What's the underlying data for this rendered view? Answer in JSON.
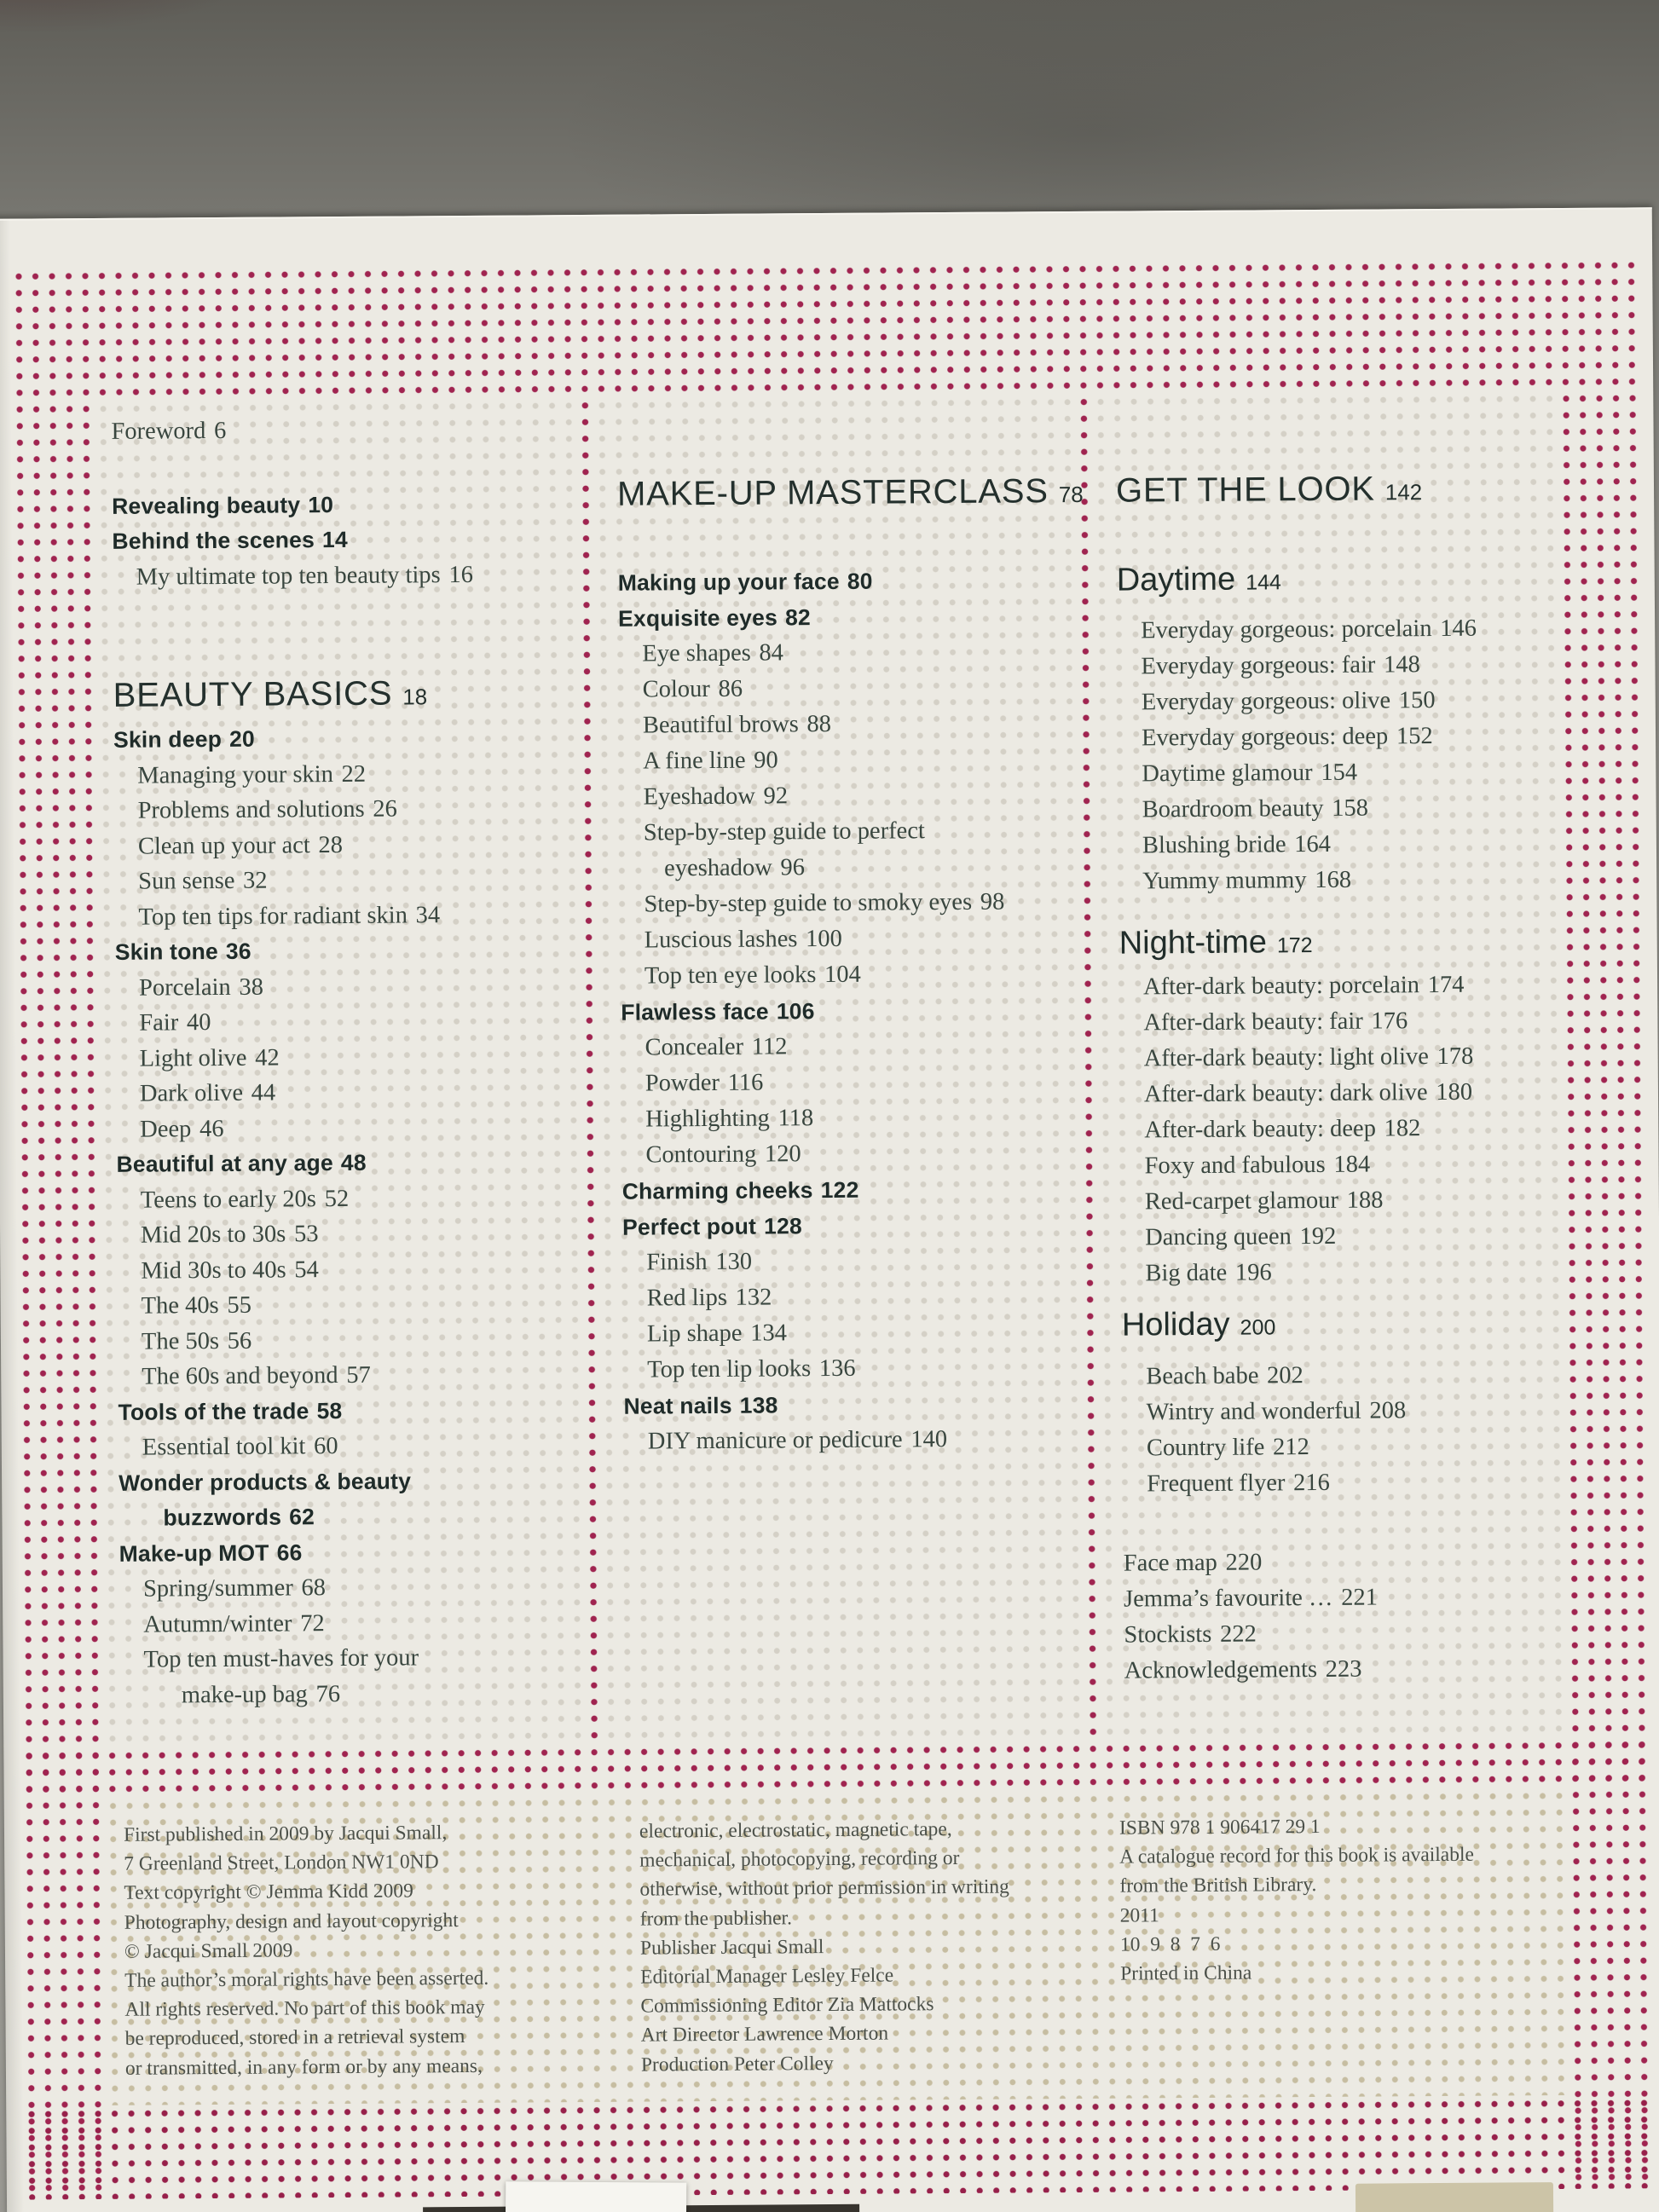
{
  "photo": {
    "subject": "Table of contents page of a make-up book lying on a grey stone table",
    "paper_color": "#eceae3",
    "table_color": "#8f8e88",
    "dot_pink": "#a02450",
    "dot_faint_grey": "#d4d0c6",
    "dot_tan": "#c6bda1",
    "heading_text_color": "#24302d",
    "serif_text_color": "#39463f"
  },
  "toc": {
    "columns": [
      {
        "name": "column-1",
        "items": [
          {
            "t": "Foreword",
            "p": "6",
            "s": "serif",
            "i": 0
          },
          {
            "gap": 46
          },
          {
            "t": "Revealing beauty",
            "p": "10",
            "s": "bold",
            "i": 0
          },
          {
            "t": "Behind the scenes",
            "p": "14",
            "s": "bold",
            "i": 0
          },
          {
            "t": "My ultimate top ten beauty tips",
            "p": "16",
            "s": "serif",
            "i": 1
          },
          {
            "gap": 90
          },
          {
            "t": "BEAUTY BASICS",
            "p": "18",
            "s": "bighead",
            "i": 0
          },
          {
            "t": "Skin deep",
            "p": "20",
            "s": "bold",
            "i": 0
          },
          {
            "t": "Managing your skin",
            "p": "22",
            "s": "serif",
            "i": 1
          },
          {
            "t": "Problems and solutions",
            "p": "26",
            "s": "serif",
            "i": 1
          },
          {
            "t": "Clean up your act",
            "p": "28",
            "s": "serif",
            "i": 1
          },
          {
            "t": "Sun sense",
            "p": "32",
            "s": "serif",
            "i": 1
          },
          {
            "t": "Top ten tips for radiant skin",
            "p": "34",
            "s": "serif",
            "i": 1
          },
          {
            "t": "Skin tone",
            "p": "36",
            "s": "bold",
            "i": 0
          },
          {
            "t": "Porcelain",
            "p": "38",
            "s": "serif",
            "i": 1
          },
          {
            "t": "Fair",
            "p": "40",
            "s": "serif",
            "i": 1
          },
          {
            "t": "Light olive",
            "p": "42",
            "s": "serif",
            "i": 1
          },
          {
            "t": "Dark olive",
            "p": "44",
            "s": "serif",
            "i": 1
          },
          {
            "t": "Deep",
            "p": "46",
            "s": "serif",
            "i": 1
          },
          {
            "t": "Beautiful at any age",
            "p": "48",
            "s": "bold",
            "i": 0
          },
          {
            "t": "Teens to early 20s",
            "p": "52",
            "s": "serif",
            "i": 1
          },
          {
            "t": "Mid 20s to 30s",
            "p": "53",
            "s": "serif",
            "i": 1
          },
          {
            "t": "Mid 30s to 40s",
            "p": "54",
            "s": "serif",
            "i": 1
          },
          {
            "t": "The 40s",
            "p": "55",
            "s": "serif",
            "i": 1
          },
          {
            "t": "The 50s",
            "p": "56",
            "s": "serif",
            "i": 1
          },
          {
            "t": "The 60s and beyond",
            "p": "57",
            "s": "serif",
            "i": 1
          },
          {
            "t": "Tools of the trade",
            "p": "58",
            "s": "bold",
            "i": 0
          },
          {
            "t": "Essential tool kit",
            "p": "60",
            "s": "serif",
            "i": 1
          },
          {
            "t": "Wonder products & beauty",
            "p": "",
            "s": "bold",
            "i": 0
          },
          {
            "t": "buzzwords",
            "p": "62",
            "s": "bold",
            "i": 2
          },
          {
            "t": "Make-up MOT",
            "p": "66",
            "s": "bold",
            "i": 0
          },
          {
            "t": "Spring/summer",
            "p": "68",
            "s": "serif",
            "i": 1
          },
          {
            "t": "Autumn/winter",
            "p": "72",
            "s": "serif",
            "i": 1
          },
          {
            "t": "Top ten must-haves for your",
            "p": "",
            "s": "serif",
            "i": 1
          },
          {
            "t": "make-up bag",
            "p": "76",
            "s": "serif",
            "i": 3
          }
        ]
      },
      {
        "name": "column-2",
        "items": [
          {
            "gap": 70
          },
          {
            "t": "MAKE-UP MASTERCLASS",
            "p": "78",
            "s": "bighead",
            "i": 0
          },
          {
            "gap": 51
          },
          {
            "t": "Making up your face",
            "p": "80",
            "s": "bold",
            "i": 0
          },
          {
            "t": "Exquisite eyes",
            "p": "82",
            "s": "bold",
            "i": 0
          },
          {
            "t": "Eye shapes",
            "p": "84",
            "s": "serif",
            "i": 1
          },
          {
            "t": "Colour",
            "p": "86",
            "s": "serif",
            "i": 1
          },
          {
            "t": "Beautiful brows",
            "p": "88",
            "s": "serif",
            "i": 1
          },
          {
            "t": "A fine line",
            "p": "90",
            "s": "serif",
            "i": 1
          },
          {
            "t": "Eyeshadow",
            "p": "92",
            "s": "serif",
            "i": 1
          },
          {
            "t": "Step-by-step guide to perfect",
            "p": "",
            "s": "serif",
            "i": 1
          },
          {
            "t": "eyeshadow",
            "p": "96",
            "s": "serif",
            "i": 2
          },
          {
            "t": "Step-by-step guide to smoky eyes",
            "p": "98",
            "s": "serif",
            "i": 1
          },
          {
            "t": "Luscious lashes",
            "p": "100",
            "s": "serif",
            "i": 1
          },
          {
            "t": "Top ten eye looks",
            "p": "104",
            "s": "serif",
            "i": 1
          },
          {
            "t": "Flawless face",
            "p": "106",
            "s": "bold",
            "i": 0
          },
          {
            "t": "Concealer",
            "p": "112",
            "s": "serif",
            "i": 1
          },
          {
            "t": "Powder",
            "p": "116",
            "s": "serif",
            "i": 1
          },
          {
            "t": "Highlighting",
            "p": "118",
            "s": "serif",
            "i": 1
          },
          {
            "t": "Contouring",
            "p": "120",
            "s": "serif",
            "i": 1
          },
          {
            "t": "Charming cheeks",
            "p": "122",
            "s": "bold",
            "i": 0
          },
          {
            "t": "Perfect pout",
            "p": "128",
            "s": "bold",
            "i": 0
          },
          {
            "t": "Finish",
            "p": "130",
            "s": "serif",
            "i": 1
          },
          {
            "t": "Red lips",
            "p": "132",
            "s": "serif",
            "i": 1
          },
          {
            "t": "Lip shape",
            "p": "134",
            "s": "serif",
            "i": 1
          },
          {
            "t": "Top ten lip looks",
            "p": "136",
            "s": "serif",
            "i": 1
          },
          {
            "t": "Neat nails",
            "p": "138",
            "s": "bold",
            "i": 0
          },
          {
            "t": "DIY manicure or pedicure",
            "p": "140",
            "s": "serif",
            "i": 1
          }
        ]
      },
      {
        "name": "column-3",
        "items": [
          {
            "gap": 70
          },
          {
            "t": "GET THE LOOK",
            "p": "142",
            "s": "bighead",
            "i": 0
          },
          {
            "gap": 46
          },
          {
            "t": "Daytime",
            "p": "144",
            "s": "subhead",
            "i": 0
          },
          {
            "gap": 8
          },
          {
            "t": "Everyday gorgeous: porcelain",
            "p": "146",
            "s": "serif",
            "i": 1
          },
          {
            "t": "Everyday gorgeous: fair",
            "p": "148",
            "s": "serif",
            "i": 1
          },
          {
            "t": "Everyday gorgeous: olive",
            "p": "150",
            "s": "serif",
            "i": 1
          },
          {
            "t": "Everyday gorgeous: deep",
            "p": "152",
            "s": "serif",
            "i": 1
          },
          {
            "t": "Daytime glamour",
            "p": "154",
            "s": "serif",
            "i": 1
          },
          {
            "t": "Boardroom beauty",
            "p": "158",
            "s": "serif",
            "i": 1
          },
          {
            "t": "Blushing bride",
            "p": "164",
            "s": "serif",
            "i": 1
          },
          {
            "t": "Yummy mummy",
            "p": "168",
            "s": "serif",
            "i": 1
          },
          {
            "gap": 24
          },
          {
            "t": "Night-time",
            "p": "172",
            "s": "subhead",
            "i": 0
          },
          {
            "t": "After-dark beauty: porcelain",
            "p": "174",
            "s": "serif",
            "i": 1
          },
          {
            "t": "After-dark beauty: fair",
            "p": "176",
            "s": "serif",
            "i": 1
          },
          {
            "t": "After-dark beauty: light olive",
            "p": "178",
            "s": "serif",
            "i": 1
          },
          {
            "t": "After-dark beauty: dark olive",
            "p": "180",
            "s": "serif",
            "i": 1
          },
          {
            "t": "After-dark beauty: deep",
            "p": "182",
            "s": "serif",
            "i": 1
          },
          {
            "t": "Foxy and fabulous",
            "p": "184",
            "s": "serif",
            "i": 1
          },
          {
            "t": "Red-carpet glamour",
            "p": "188",
            "s": "serif",
            "i": 1
          },
          {
            "t": "Dancing queen",
            "p": "192",
            "s": "serif",
            "i": 1
          },
          {
            "t": "Big date",
            "p": "196",
            "s": "serif",
            "i": 1
          },
          {
            "gap": 12
          },
          {
            "t": "Holiday",
            "p": "200",
            "s": "subhead",
            "i": 0
          },
          {
            "gap": 9
          },
          {
            "t": "Beach babe",
            "p": "202",
            "s": "serif",
            "i": 1
          },
          {
            "t": "Wintry and wonderful",
            "p": "208",
            "s": "serif",
            "i": 1
          },
          {
            "t": "Country life",
            "p": "212",
            "s": "serif",
            "i": 1
          },
          {
            "t": "Frequent flyer",
            "p": "216",
            "s": "serif",
            "i": 1
          },
          {
            "gap": 51
          },
          {
            "t": "Face map",
            "p": "220",
            "s": "serif",
            "i": 0
          },
          {
            "t": "Jemma’s favourite …",
            "p": "221",
            "s": "serif",
            "i": 0
          },
          {
            "t": "Stockists",
            "p": "222",
            "s": "serif",
            "i": 0
          },
          {
            "t": "Acknowledgements",
            "p": "223",
            "s": "serif",
            "i": 0
          }
        ]
      }
    ]
  },
  "imprint": {
    "columns": [
      {
        "lines": [
          "First published in 2009 by Jacqui Small,",
          "7 Greenland Street, London NW1 0ND",
          "Text copyright © Jemma Kidd 2009",
          "Photography, design and layout copyright",
          "© Jacqui Small 2009",
          "The author’s moral rights have been asserted.",
          "All rights reserved. No part of this book may",
          "be reproduced, stored in a retrieval system",
          "or transmitted, in any form or by any means,"
        ]
      },
      {
        "lines": [
          "electronic, electrostatic, magnetic tape,",
          "mechanical, photocopying, recording or",
          "otherwise, without prior permission in writing",
          "from the publisher.",
          "Publisher Jacqui Small",
          "Editorial Manager Lesley Felce",
          "Commissioning Editor Zia Mattocks",
          "Art Director Lawrence Morton",
          "Production Peter Colley"
        ]
      },
      {
        "lines": [
          "ISBN 978 1 906417 29 1",
          "A catalogue record for this book is available",
          "from the British Library.",
          "2011",
          "10  9  8  7  6",
          "Printed in China"
        ]
      }
    ]
  }
}
